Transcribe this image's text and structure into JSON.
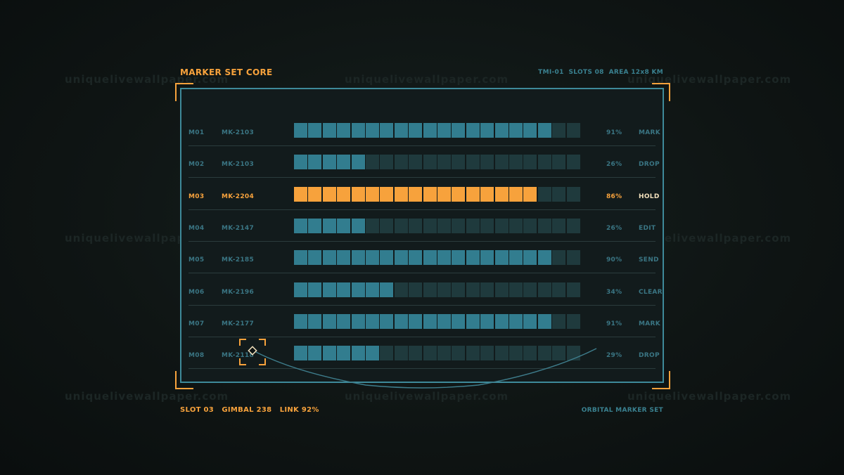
{
  "header": {
    "title": "MARKER SET CORE",
    "meta": "TMI-01  SLOTS 08  AREA 12x8 KM"
  },
  "footer": {
    "status": "SLOT 03   GIMBAL 238   LINK 92%",
    "label": "ORBITAL MARKER SET"
  },
  "watermark": "uniquelivewallpaper.com",
  "colors": {
    "accent": "#f7a23c",
    "teal": "#3e8a9a",
    "segment_on": "#327d8f",
    "segment_off": "#1f3a3d"
  },
  "segments_per_bar": 20,
  "rows": [
    {
      "id": "M01",
      "code": "MK-2103",
      "level": 0.91,
      "pct": "91%",
      "action": "MARK",
      "selected": false
    },
    {
      "id": "M02",
      "code": "MK-2103",
      "level": 0.26,
      "pct": "26%",
      "action": "DROP",
      "selected": false
    },
    {
      "id": "M03",
      "code": "MK-2204",
      "level": 0.86,
      "pct": "86%",
      "action": "HOLD",
      "selected": true
    },
    {
      "id": "M04",
      "code": "MK-2147",
      "level": 0.26,
      "pct": "26%",
      "action": "EDIT",
      "selected": false
    },
    {
      "id": "M05",
      "code": "MK-2185",
      "level": 0.9,
      "pct": "90%",
      "action": "SEND",
      "selected": false
    },
    {
      "id": "M06",
      "code": "MK-2196",
      "level": 0.34,
      "pct": "34%",
      "action": "CLEAR",
      "selected": false
    },
    {
      "id": "M07",
      "code": "MK-2177",
      "level": 0.91,
      "pct": "91%",
      "action": "MARK",
      "selected": false
    },
    {
      "id": "M08",
      "code": "MK-2118",
      "level": 0.29,
      "pct": "29%",
      "action": "DROP",
      "selected": false
    }
  ]
}
